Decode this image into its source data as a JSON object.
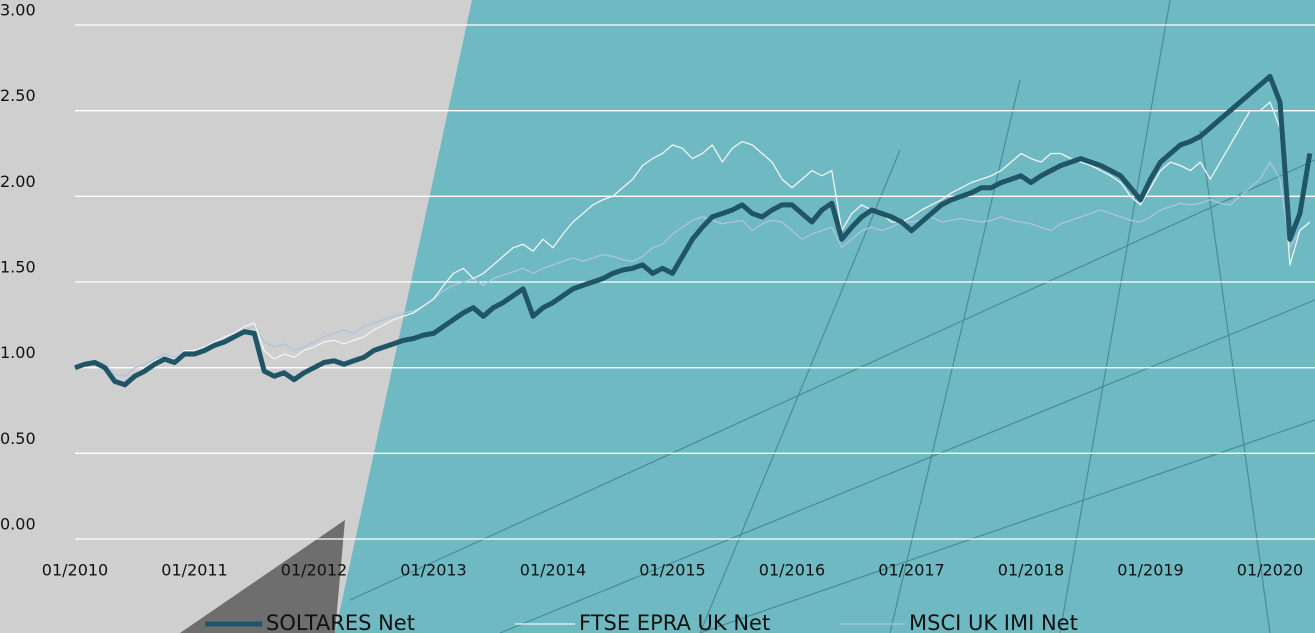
{
  "chart_data": {
    "type": "line",
    "categories": [
      "01/2010",
      null,
      null,
      null,
      null,
      null,
      null,
      null,
      null,
      null,
      null,
      null,
      "01/2011",
      null,
      null,
      null,
      null,
      null,
      null,
      null,
      null,
      null,
      null,
      null,
      "01/2012",
      null,
      null,
      null,
      null,
      null,
      null,
      null,
      null,
      null,
      null,
      null,
      "01/2013",
      null,
      null,
      null,
      null,
      null,
      null,
      null,
      null,
      null,
      null,
      null,
      "01/2014",
      null,
      null,
      null,
      null,
      null,
      null,
      null,
      null,
      null,
      null,
      null,
      "01/2015",
      null,
      null,
      null,
      null,
      null,
      null,
      null,
      null,
      null,
      null,
      null,
      "01/2016",
      null,
      null,
      null,
      null,
      null,
      null,
      null,
      null,
      null,
      null,
      null,
      "01/2017",
      null,
      null,
      null,
      null,
      null,
      null,
      null,
      null,
      null,
      null,
      null,
      "01/2018",
      null,
      null,
      null,
      null,
      null,
      null,
      null,
      null,
      null,
      null,
      null,
      "01/2019",
      null,
      null,
      null,
      null,
      null,
      null,
      null,
      null,
      null,
      null,
      null,
      "01/2020",
      null,
      null,
      null,
      null
    ],
    "series": [
      {
        "name": "SOLTARES Net",
        "color": "#1f5566",
        "values": [
          1.0,
          1.02,
          1.03,
          1.0,
          0.92,
          0.9,
          0.95,
          0.98,
          1.02,
          1.05,
          1.03,
          1.08,
          1.08,
          1.1,
          1.13,
          1.15,
          1.18,
          1.21,
          1.2,
          0.98,
          0.95,
          0.97,
          0.93,
          0.97,
          1.0,
          1.03,
          1.04,
          1.02,
          1.04,
          1.06,
          1.1,
          1.12,
          1.14,
          1.16,
          1.17,
          1.19,
          1.2,
          1.24,
          1.28,
          1.32,
          1.35,
          1.3,
          1.35,
          1.38,
          1.42,
          1.46,
          1.3,
          1.35,
          1.38,
          1.42,
          1.46,
          1.48,
          1.5,
          1.52,
          1.55,
          1.57,
          1.58,
          1.6,
          1.55,
          1.58,
          1.55,
          1.65,
          1.75,
          1.82,
          1.88,
          1.9,
          1.92,
          1.95,
          1.9,
          1.88,
          1.92,
          1.95,
          1.95,
          1.9,
          1.85,
          1.92,
          1.96,
          1.75,
          1.82,
          1.88,
          1.92,
          1.9,
          1.88,
          1.85,
          1.8,
          1.85,
          1.9,
          1.95,
          1.98,
          2.0,
          2.02,
          2.05,
          2.05,
          2.08,
          2.1,
          2.12,
          2.08,
          2.12,
          2.15,
          2.18,
          2.2,
          2.22,
          2.2,
          2.18,
          2.15,
          2.12,
          2.05,
          1.98,
          2.1,
          2.2,
          2.25,
          2.3,
          2.32,
          2.35,
          2.4,
          2.45,
          2.5,
          2.55,
          2.6,
          2.65,
          2.7,
          2.55,
          1.75,
          1.9,
          2.25
        ]
      },
      {
        "name": "FTSE EPRA UK Net",
        "color": "#f2f2f2",
        "values": [
          1.0,
          1.02,
          1.04,
          1.0,
          0.92,
          0.9,
          0.96,
          1.0,
          1.04,
          1.06,
          1.05,
          1.1,
          1.1,
          1.12,
          1.15,
          1.18,
          1.2,
          1.24,
          1.26,
          1.1,
          1.05,
          1.08,
          1.06,
          1.1,
          1.12,
          1.15,
          1.16,
          1.14,
          1.16,
          1.18,
          1.22,
          1.25,
          1.28,
          1.3,
          1.32,
          1.36,
          1.4,
          1.48,
          1.55,
          1.58,
          1.52,
          1.55,
          1.6,
          1.65,
          1.7,
          1.72,
          1.68,
          1.75,
          1.7,
          1.78,
          1.85,
          1.9,
          1.95,
          1.98,
          2.0,
          2.05,
          2.1,
          2.18,
          2.22,
          2.25,
          2.3,
          2.28,
          2.22,
          2.25,
          2.3,
          2.2,
          2.28,
          2.32,
          2.3,
          2.25,
          2.2,
          2.1,
          2.05,
          2.1,
          2.15,
          2.12,
          2.15,
          1.8,
          1.9,
          1.95,
          1.92,
          1.9,
          1.85,
          1.85,
          1.88,
          1.92,
          1.95,
          1.98,
          2.02,
          2.05,
          2.08,
          2.1,
          2.12,
          2.15,
          2.2,
          2.25,
          2.22,
          2.2,
          2.25,
          2.25,
          2.22,
          2.2,
          2.18,
          2.15,
          2.12,
          2.08,
          2.0,
          1.95,
          2.05,
          2.15,
          2.2,
          2.18,
          2.15,
          2.2,
          2.1,
          2.2,
          2.3,
          2.4,
          2.5,
          2.5,
          2.55,
          2.4,
          1.6,
          1.8,
          1.85
        ]
      },
      {
        "name": "MSCI UK IMI Net",
        "color": "#adc3e0",
        "values": [
          1.0,
          1.02,
          1.04,
          1.02,
          0.96,
          0.95,
          1.0,
          1.02,
          1.05,
          1.08,
          1.06,
          1.1,
          1.1,
          1.12,
          1.14,
          1.16,
          1.18,
          1.22,
          1.24,
          1.15,
          1.12,
          1.14,
          1.1,
          1.12,
          1.15,
          1.18,
          1.2,
          1.22,
          1.2,
          1.24,
          1.26,
          1.28,
          1.3,
          1.32,
          1.33,
          1.36,
          1.4,
          1.45,
          1.48,
          1.5,
          1.52,
          1.48,
          1.52,
          1.54,
          1.56,
          1.58,
          1.55,
          1.58,
          1.6,
          1.62,
          1.64,
          1.62,
          1.64,
          1.66,
          1.65,
          1.63,
          1.62,
          1.65,
          1.7,
          1.72,
          1.78,
          1.82,
          1.86,
          1.88,
          1.86,
          1.84,
          1.85,
          1.86,
          1.8,
          1.84,
          1.86,
          1.85,
          1.8,
          1.75,
          1.78,
          1.8,
          1.82,
          1.7,
          1.75,
          1.8,
          1.82,
          1.8,
          1.82,
          1.85,
          1.85,
          1.86,
          1.88,
          1.85,
          1.86,
          1.87,
          1.86,
          1.85,
          1.86,
          1.88,
          1.86,
          1.85,
          1.84,
          1.82,
          1.8,
          1.84,
          1.86,
          1.88,
          1.9,
          1.92,
          1.9,
          1.88,
          1.86,
          1.85,
          1.88,
          1.92,
          1.94,
          1.96,
          1.95,
          1.96,
          1.98,
          1.96,
          1.95,
          2.0,
          2.05,
          2.1,
          2.2,
          2.1,
          1.7,
          1.8,
          1.85
        ]
      }
    ],
    "ylim": [
      0,
      3
    ],
    "yticks": [
      {
        "value": 0,
        "label": "0.00"
      },
      {
        "value": 0.5,
        "label": "0.50"
      },
      {
        "value": 1,
        "label": "1.00"
      },
      {
        "value": 1.5,
        "label": "1.50"
      },
      {
        "value": 2,
        "label": "2.00"
      },
      {
        "value": 2.5,
        "label": "2.50"
      },
      {
        "value": 3,
        "label": "3.00"
      }
    ],
    "grid": true,
    "legend": "bottom"
  }
}
